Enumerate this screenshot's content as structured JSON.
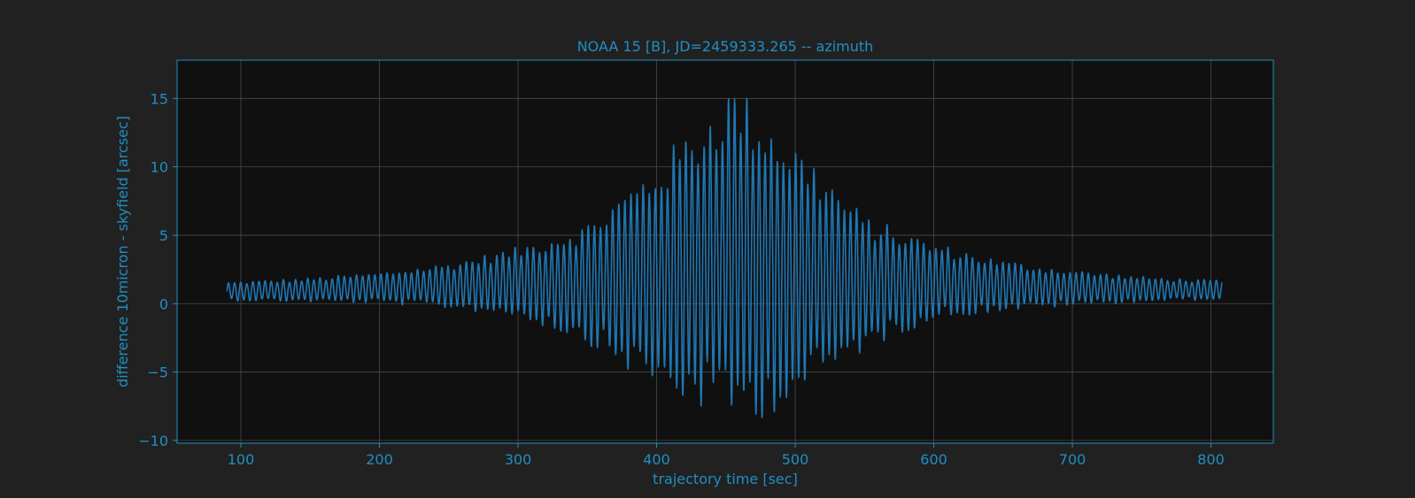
{
  "chart_data": {
    "type": "line",
    "title": "NOAA 15 [B], JD=2459333.265 -- azimuth",
    "xlabel": "trajectory time [sec]",
    "ylabel": "difference 10micron - skyfield [arcsec]",
    "xlim": [
      54,
      845
    ],
    "ylim": [
      -10.2,
      17.8
    ],
    "xticks": [
      100,
      200,
      300,
      400,
      500,
      600,
      700,
      800
    ],
    "yticks": [
      15,
      10,
      5,
      0,
      -5,
      -10
    ],
    "xtick_labels": [
      "100",
      "200",
      "300",
      "400",
      "500",
      "600",
      "700",
      "800"
    ],
    "ytick_labels": [
      "15",
      "10",
      "5",
      "0",
      "−5",
      "−10"
    ],
    "grid": true,
    "series": [
      {
        "color": "#1f77b4",
        "x_start": 90,
        "x_end": 808,
        "samples_per_sec": 4,
        "oscillation_period_sec": 4.4,
        "envelope_x": [
          90,
          150,
          200,
          250,
          300,
          350,
          400,
          430,
          455,
          480,
          510,
          550,
          600,
          650,
          700,
          750,
          808
        ],
        "envelope_upper": [
          1.6,
          1.9,
          2.3,
          3.0,
          4.2,
          6.0,
          10.5,
          13.6,
          16.5,
          14.0,
          11.0,
          6.5,
          4.5,
          3.2,
          2.5,
          2.0,
          1.7
        ],
        "envelope_lower": [
          0.2,
          0.1,
          0.0,
          -0.4,
          -1.0,
          -3.0,
          -6.5,
          -8.0,
          -8.9,
          -8.5,
          -6.5,
          -3.5,
          -1.2,
          -0.6,
          -0.2,
          0.1,
          0.3
        ]
      }
    ]
  },
  "colors": {
    "figure_bg": "#212121",
    "axes_bg": "#101010",
    "axis_color": "#1f8fc4",
    "grid_color": "#4a4a4a",
    "line_color": "#1f77b4"
  }
}
